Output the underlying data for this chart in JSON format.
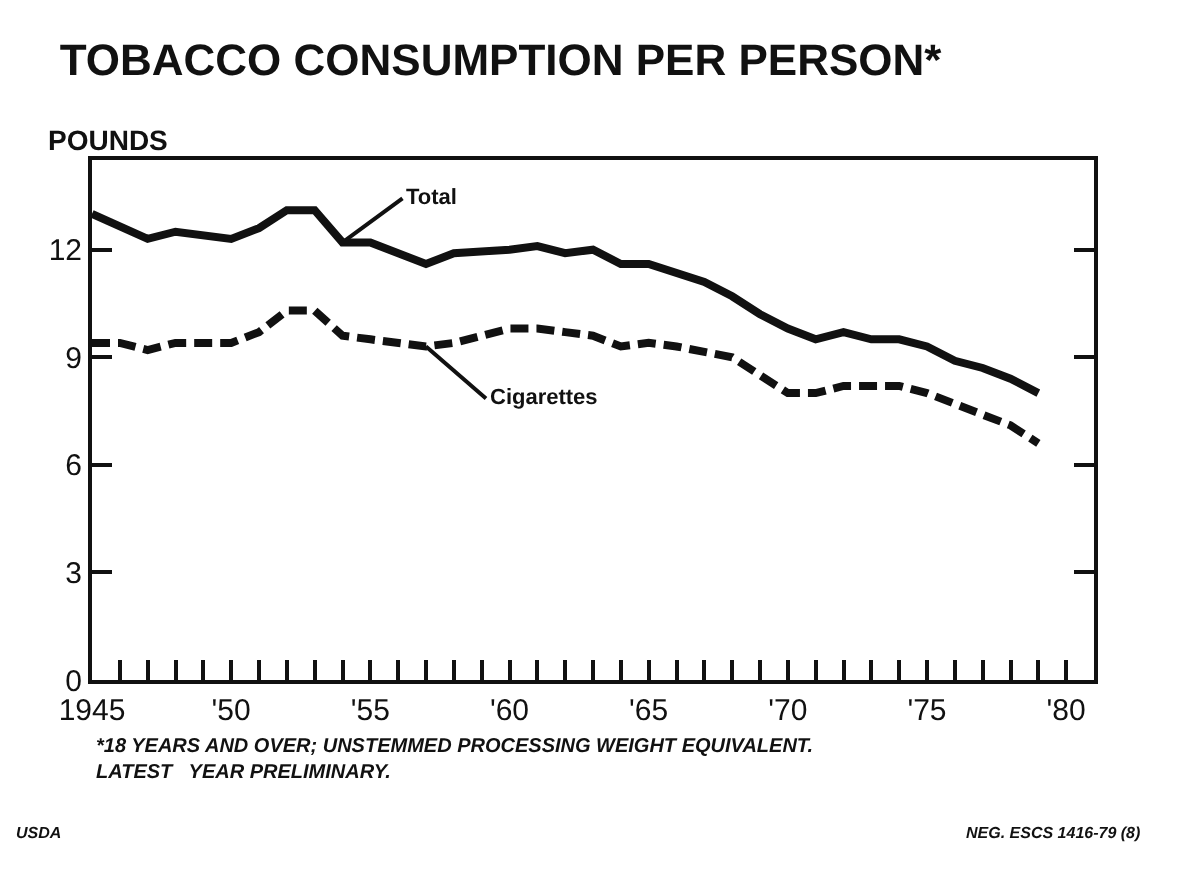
{
  "chart_data": {
    "type": "line",
    "title": "TOBACCO CONSUMPTION PER PERSON*",
    "ylabel": "POUNDS",
    "series": [
      {
        "name": "Total",
        "color": "#111111",
        "line_style": "solid",
        "x": [
          1945,
          1947,
          1948,
          1950,
          1951,
          1952,
          1953,
          1954,
          1955,
          1957,
          1958,
          1960,
          1961,
          1962,
          1963,
          1964,
          1965,
          1967,
          1968,
          1969,
          1970,
          1971,
          1972,
          1973,
          1974,
          1975,
          1976,
          1977,
          1978,
          1979
        ],
        "values": [
          13.0,
          12.3,
          12.5,
          12.3,
          12.6,
          13.1,
          13.1,
          12.2,
          12.2,
          11.6,
          11.9,
          12.0,
          12.1,
          11.9,
          12.0,
          11.6,
          11.6,
          11.1,
          10.7,
          10.2,
          9.8,
          9.5,
          9.7,
          9.5,
          9.5,
          9.3,
          8.9,
          8.7,
          8.4,
          8.0
        ]
      },
      {
        "name": "Cigarettes",
        "color": "#111111",
        "line_style": "dashed",
        "x": [
          1945,
          1946,
          1947,
          1948,
          1950,
          1951,
          1952,
          1953,
          1954,
          1955,
          1957,
          1958,
          1960,
          1961,
          1962,
          1963,
          1964,
          1965,
          1966,
          1968,
          1969,
          1970,
          1971,
          1972,
          1973,
          1974,
          1975,
          1976,
          1977,
          1978,
          1979
        ],
        "values": [
          9.4,
          9.4,
          9.2,
          9.4,
          9.4,
          9.7,
          10.3,
          10.3,
          9.6,
          9.5,
          9.3,
          9.4,
          9.8,
          9.8,
          9.7,
          9.6,
          9.3,
          9.4,
          9.3,
          9.0,
          8.5,
          8.0,
          8.0,
          8.2,
          8.2,
          8.2,
          8.0,
          7.7,
          7.4,
          7.1,
          6.6
        ]
      }
    ],
    "xlim": [
      1945,
      1981
    ],
    "ylim": [
      0,
      14.5
    ],
    "xticks": [
      {
        "value": 1945,
        "label": "1945"
      },
      {
        "value": 1946,
        "label": null
      },
      {
        "value": 1947,
        "label": null
      },
      {
        "value": 1948,
        "label": null
      },
      {
        "value": 1949,
        "label": null
      },
      {
        "value": 1950,
        "label": "'50"
      },
      {
        "value": 1951,
        "label": null
      },
      {
        "value": 1952,
        "label": null
      },
      {
        "value": 1953,
        "label": null
      },
      {
        "value": 1954,
        "label": null
      },
      {
        "value": 1955,
        "label": "'55"
      },
      {
        "value": 1956,
        "label": null
      },
      {
        "value": 1957,
        "label": null
      },
      {
        "value": 1958,
        "label": null
      },
      {
        "value": 1959,
        "label": null
      },
      {
        "value": 1960,
        "label": "'60"
      },
      {
        "value": 1961,
        "label": null
      },
      {
        "value": 1962,
        "label": null
      },
      {
        "value": 1963,
        "label": null
      },
      {
        "value": 1964,
        "label": null
      },
      {
        "value": 1965,
        "label": "'65"
      },
      {
        "value": 1966,
        "label": null
      },
      {
        "value": 1967,
        "label": null
      },
      {
        "value": 1968,
        "label": null
      },
      {
        "value": 1969,
        "label": null
      },
      {
        "value": 1970,
        "label": "'70"
      },
      {
        "value": 1971,
        "label": null
      },
      {
        "value": 1972,
        "label": null
      },
      {
        "value": 1973,
        "label": null
      },
      {
        "value": 1974,
        "label": null
      },
      {
        "value": 1975,
        "label": "'75"
      },
      {
        "value": 1976,
        "label": null
      },
      {
        "value": 1977,
        "label": null
      },
      {
        "value": 1978,
        "label": null
      },
      {
        "value": 1979,
        "label": null
      },
      {
        "value": 1980,
        "label": "'80"
      }
    ],
    "yticks": [
      0,
      3,
      6,
      9,
      12
    ],
    "grid": false,
    "legend": false,
    "marker": "none",
    "annotations": [
      "*18 YEARS AND OVER; UNSTEMMED PROCESSING WEIGHT EQUIVALENT.\nLATEST   YEAR PRELIMINARY.",
      "USDA",
      "NEG. ESCS 1416-79 (8)"
    ]
  }
}
